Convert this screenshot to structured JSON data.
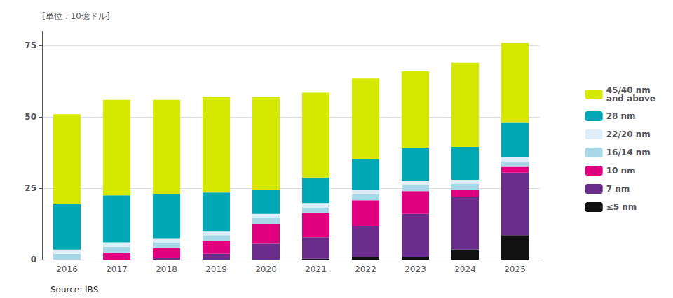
{
  "chart_data": {
    "type": "bar",
    "stacked": true,
    "ylabel": "[単位：10億ドル]",
    "annotations": [
      "Source: IBS"
    ],
    "categories": [
      2016,
      2017,
      2018,
      2019,
      2020,
      2021,
      2022,
      2023,
      2024,
      2025
    ],
    "series": [
      {
        "name": "≤5 nm",
        "color": "#111111",
        "values": [
          0,
          0,
          0,
          0,
          0,
          0.3,
          0.8,
          1.0,
          3.5,
          8.5
        ]
      },
      {
        "name": "7 nm",
        "color": "#6b2d8b",
        "values": [
          0,
          0,
          0.5,
          2.0,
          5.5,
          7.5,
          11.0,
          15.0,
          18.5,
          22.0
        ]
      },
      {
        "name": "10 nm",
        "color": "#e0007f",
        "values": [
          0,
          2.5,
          3.5,
          4.5,
          7.0,
          8.5,
          9.0,
          8.0,
          2.5,
          2.0
        ]
      },
      {
        "name": "16/14 nm",
        "color": "#a8d8e8",
        "values": [
          2.0,
          2.0,
          2.0,
          2.0,
          2.0,
          2.0,
          2.0,
          2.0,
          2.0,
          2.0
        ]
      },
      {
        "name": "22/20 nm",
        "color": "#ddeef8",
        "values": [
          1.5,
          1.5,
          1.5,
          1.5,
          1.5,
          1.5,
          1.5,
          1.5,
          1.5,
          1.5
        ]
      },
      {
        "name": "28 nm",
        "color": "#00a8b5",
        "values": [
          16.0,
          16.5,
          15.5,
          13.5,
          8.5,
          9.0,
          11.0,
          11.5,
          11.5,
          12.0
        ]
      },
      {
        "name": "45/40 nm\nand above",
        "color": "#d4e800",
        "values": [
          31.5,
          33.5,
          33.0,
          33.5,
          32.5,
          29.7,
          28.2,
          27.0,
          29.5,
          28.0
        ]
      }
    ],
    "ylim": [
      0,
      80
    ],
    "yticks": [
      0,
      25,
      50,
      75
    ],
    "grid": true,
    "legend": "right"
  }
}
